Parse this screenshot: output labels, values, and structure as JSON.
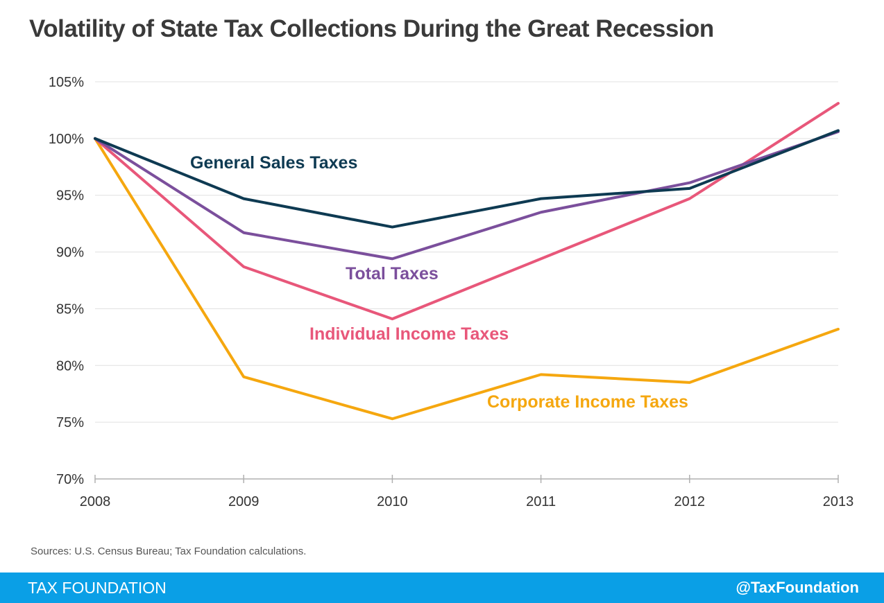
{
  "title": "Volatility of State Tax Collections During the Great Recession",
  "source": "Sources: U.S. Census Bureau; Tax Foundation calculations.",
  "footer": {
    "brand": "TAX FOUNDATION",
    "handle": "@TaxFoundation",
    "color": "#0a9fe6"
  },
  "chart_data": {
    "type": "line",
    "x": [
      "2008",
      "2009",
      "2010",
      "2011",
      "2012",
      "2013"
    ],
    "ylim": [
      70,
      105
    ],
    "yticks": [
      70,
      75,
      80,
      85,
      90,
      95,
      100,
      105
    ],
    "ytick_labels": [
      "70%",
      "75%",
      "80%",
      "85%",
      "90%",
      "95%",
      "100%",
      "105%"
    ],
    "grid": true,
    "legend": "inline labels",
    "series": [
      {
        "name": "General Sales Taxes",
        "color": "#0e3a52",
        "values": [
          100,
          94.7,
          92.2,
          94.7,
          95.6,
          100.7
        ]
      },
      {
        "name": "Total Taxes",
        "color": "#7b4f9c",
        "values": [
          100,
          91.7,
          89.4,
          93.5,
          96.1,
          100.6
        ]
      },
      {
        "name": "Individual Income Taxes",
        "color": "#e8577a",
        "values": [
          100,
          88.7,
          84.1,
          89.4,
          94.7,
          103.1
        ]
      },
      {
        "name": "Corporate Income Taxes",
        "color": "#f5a70f",
        "values": [
          100,
          79.0,
          75.3,
          79.2,
          78.5,
          83.2
        ]
      }
    ]
  }
}
